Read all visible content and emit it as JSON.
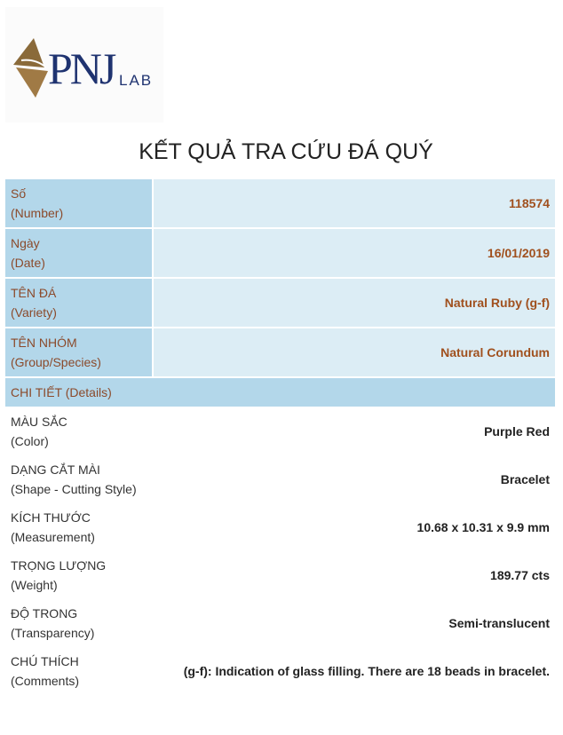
{
  "logo": {
    "text": "PNJ LAB"
  },
  "title": "KẾT QUẢ TRA CỨU ĐÁ QUÝ",
  "header_rows": [
    {
      "label": "Số",
      "sub": "(Number)",
      "value": "118574"
    },
    {
      "label": "Ngày",
      "sub": "(Date)",
      "value": "16/01/2019"
    },
    {
      "label": "TÊN ĐÁ",
      "sub": "(Variety)",
      "value": "Natural Ruby (g-f)"
    },
    {
      "label": "TÊN NHÓM",
      "sub": "(Group/Species)",
      "value": "Natural Corundum"
    }
  ],
  "details_header": "CHI TIẾT (Details)",
  "details": [
    {
      "label": "MÀU SẮC",
      "sub": "(Color)",
      "value": "Purple Red"
    },
    {
      "label": "DẠNG CẮT MÀI",
      "sub": "(Shape - Cutting Style)",
      "value": "Bracelet"
    },
    {
      "label": "KÍCH THƯỚC",
      "sub": "(Measurement)",
      "value": "10.68 x 10.31 x 9.9 mm"
    },
    {
      "label": "TRỌNG LƯỢNG",
      "sub": "(Weight)",
      "value": "189.77 cts"
    },
    {
      "label": "ĐỘ TRONG",
      "sub": "(Transparency)",
      "value": "Semi-translucent"
    },
    {
      "label": "CHÚ THÍCH",
      "sub": "(Comments)",
      "value": "(g-f): Indication of glass filling. There are 18 beads in bracelet."
    }
  ]
}
